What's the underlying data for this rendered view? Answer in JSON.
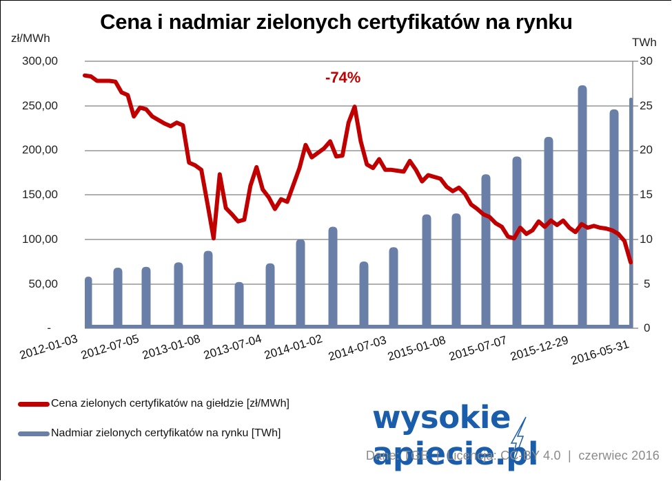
{
  "chart_data": {
    "type": "bar+line",
    "title": "Cena i nadmiar zielonych certyfikatów na rynku",
    "left_axis": {
      "unit_label": "zł/MWh",
      "ticks": [
        "300,00",
        "250,00",
        "200,00",
        "150,00",
        "100,00",
        "50,00",
        "-"
      ],
      "range": [
        0,
        300
      ]
    },
    "right_axis": {
      "unit_label": "TWh",
      "ticks": [
        "30",
        "25",
        "20",
        "15",
        "10",
        "5",
        "0"
      ],
      "range": [
        0,
        30
      ]
    },
    "x_tick_labels": [
      "2012-01-03",
      "2012-07-05",
      "2013-01-08",
      "2013-07-04",
      "2014-01-02",
      "2014-07-03",
      "2015-01-08",
      "2015-07-07",
      "2015-12-29",
      "2016-05-31"
    ],
    "grid": true,
    "annotation": "-74%",
    "series": [
      {
        "name": "Cena zielonych certyfikatów na giełdzie [zł/MWh]",
        "type": "line",
        "axis": "left",
        "color": "#c00000",
        "points": [
          [
            "2012-01",
            284
          ],
          [
            "2012-02",
            283
          ],
          [
            "2012-03",
            278
          ],
          [
            "2012-04",
            278
          ],
          [
            "2012-05",
            278
          ],
          [
            "2012-06",
            277
          ],
          [
            "2012-07",
            265
          ],
          [
            "2012-07b",
            262
          ],
          [
            "2012-08",
            238
          ],
          [
            "2012-08b",
            248
          ],
          [
            "2012-09",
            246
          ],
          [
            "2012-10",
            238
          ],
          [
            "2012-11",
            234
          ],
          [
            "2012-12",
            230
          ],
          [
            "2013-01",
            227
          ],
          [
            "2013-01b",
            231
          ],
          [
            "2013-02",
            228
          ],
          [
            "2013-03",
            186
          ],
          [
            "2013-03b",
            183
          ],
          [
            "2013-04",
            178
          ],
          [
            "2013-04b",
            140
          ],
          [
            "2013-05",
            101
          ],
          [
            "2013-05b",
            173
          ],
          [
            "2013-05c",
            135
          ],
          [
            "2013-06",
            128
          ],
          [
            "2013-06b",
            120
          ],
          [
            "2013-07",
            122
          ],
          [
            "2013-07b",
            160
          ],
          [
            "2013-08",
            181
          ],
          [
            "2013-08b",
            156
          ],
          [
            "2013-09",
            147
          ],
          [
            "2013-09b",
            134
          ],
          [
            "2013-10",
            145
          ],
          [
            "2013-10b",
            142
          ],
          [
            "2013-11",
            161
          ],
          [
            "2013-11b",
            180
          ],
          [
            "2013-12",
            206
          ],
          [
            "2013-12b",
            192
          ],
          [
            "2014-01",
            197
          ],
          [
            "2014-01b",
            202
          ],
          [
            "2014-02",
            210
          ],
          [
            "2014-02b",
            193
          ],
          [
            "2014-03",
            194
          ],
          [
            "2014-03b",
            231
          ],
          [
            "2014-04",
            249
          ],
          [
            "2014-04b",
            210
          ],
          [
            "2014-05",
            184
          ],
          [
            "2014-05b",
            180
          ],
          [
            "2014-06",
            190
          ],
          [
            "2014-06b",
            178
          ],
          [
            "2014-07",
            178
          ],
          [
            "2014-08",
            177
          ],
          [
            "2014-09",
            176
          ],
          [
            "2014-09b",
            188
          ],
          [
            "2014-10",
            178
          ],
          [
            "2014-10b",
            165
          ],
          [
            "2014-11",
            172
          ],
          [
            "2014-11b",
            170
          ],
          [
            "2014-12",
            168
          ],
          [
            "2014-12b",
            159
          ],
          [
            "2015-01",
            154
          ],
          [
            "2015-01b",
            158
          ],
          [
            "2015-02",
            151
          ],
          [
            "2015-02b",
            139
          ],
          [
            "2015-03",
            134
          ],
          [
            "2015-04",
            128
          ],
          [
            "2015-04b",
            125
          ],
          [
            "2015-05",
            118
          ],
          [
            "2015-06",
            114
          ],
          [
            "2015-06b",
            103
          ],
          [
            "2015-07",
            101
          ],
          [
            "2015-07b",
            113
          ],
          [
            "2015-08",
            106
          ],
          [
            "2015-08b",
            110
          ],
          [
            "2015-09",
            120
          ],
          [
            "2015-09b",
            114
          ],
          [
            "2015-10",
            121
          ],
          [
            "2015-10b",
            116
          ],
          [
            "2015-11",
            121
          ],
          [
            "2015-11b",
            113
          ],
          [
            "2015-12",
            108
          ],
          [
            "2015-12b",
            117
          ],
          [
            "2016-01",
            113
          ],
          [
            "2016-02",
            115
          ],
          [
            "2016-02b",
            113
          ],
          [
            "2016-03",
            112
          ],
          [
            "2016-04",
            110
          ],
          [
            "2016-04b",
            106
          ],
          [
            "2016-05",
            98
          ],
          [
            "2016-05-31",
            74
          ]
        ]
      },
      {
        "name": "Nadmiar zielonych certyfikatów na rynku [TWh]",
        "type": "bar",
        "axis": "right",
        "color": "#6a7fa8",
        "values": [
          5.8,
          6.8,
          6.9,
          7.4,
          8.7,
          5.2,
          7.3,
          10.0,
          11.4,
          7.5,
          9.1,
          12.8,
          12.9,
          17.3,
          19.3,
          21.5,
          27.3,
          24.6,
          25.9
        ]
      }
    ]
  },
  "header": {
    "title": "Cena i nadmiar zielonych certyfikatów na rynku"
  },
  "axes": {
    "left_unit": "zł/MWh",
    "right_unit": "TWh",
    "left_ticks": [
      "300,00",
      "250,00",
      "200,00",
      "150,00",
      "100,00",
      "50,00",
      "-"
    ],
    "right_ticks": [
      "30",
      "25",
      "20",
      "15",
      "10",
      "5",
      "0"
    ],
    "x_ticks": [
      "2012-01-03",
      "2012-07-05",
      "2013-01-08",
      "2013-07-04",
      "2014-01-02",
      "2014-07-03",
      "2015-01-08",
      "2015-07-07",
      "2015-12-29",
      "2016-05-31"
    ]
  },
  "annotation": {
    "text": "-74%",
    "color": "#c00000"
  },
  "legend": {
    "items": [
      {
        "label": "Cena zielonych certyfikatów na giełdzie [zł/MWh]",
        "color": "#c00000"
      },
      {
        "label": "Nadmiar zielonych certyfikatów na rynku [TWh]",
        "color": "#6a7fa8"
      }
    ]
  },
  "logo": {
    "left": "wysokie",
    "right": "apiecie.pl",
    "color": "#1a5eab"
  },
  "footer": {
    "text": "Dane: TGE  |  Licencja: CC-BY 4.0  |  czerwiec 2016"
  }
}
